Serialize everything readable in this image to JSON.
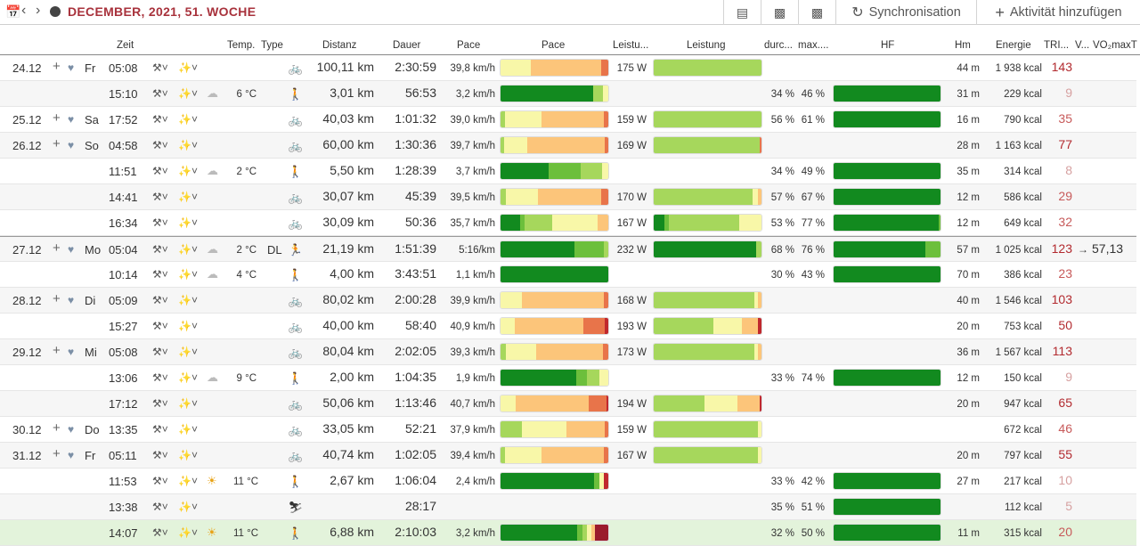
{
  "toolbar": {
    "title": "DECEMBER, 2021, 51. WOCHE",
    "sync_label": "Synchronisation",
    "add_label": "Aktivität hinzufügen"
  },
  "columns": {
    "zeit": "Zeit",
    "temp": "Temp.",
    "type": "Type",
    "distanz": "Distanz",
    "dauer": "Dauer",
    "pace_value": "Pace",
    "pace_bar": "Pace",
    "leistung_value": "Leistu...",
    "leistung_bar": "Leistung",
    "avg": "durc...",
    "max": "max....",
    "hf": "HF",
    "hm": "Hm",
    "energie": "Energie",
    "trimp": "TRI...",
    "v": "V...",
    "vo2": "VO₂maxT"
  },
  "colors": {
    "dg": "#128a1f",
    "mg": "#6cbf3c",
    "lg": "#a6d75c",
    "ly": "#f8f7a8",
    "or": "#fcc57a",
    "dor": "#e8744a",
    "rd": "#c0282e",
    "drd": "#9a1c2c"
  },
  "rows": [
    {
      "date": "24.12",
      "dow": "Fr",
      "time": "05:08",
      "temp": "",
      "type": "",
      "sport": "bike",
      "dist": "100,11 km",
      "dur": "2:30:59",
      "pace": "39,8 km/h",
      "watt": "175 W",
      "avg": "",
      "max": "",
      "hm": "44 m",
      "kcal": "1 938 kcal",
      "trimp": "143",
      "vo2": "",
      "pace_bar": [
        [
          "ly",
          0.04
        ],
        [
          "ly",
          0.24
        ],
        [
          "or",
          0.65
        ],
        [
          "dor",
          0.07
        ]
      ],
      "watt_bar": [
        [
          "lg",
          1.0
        ]
      ],
      "hf_bar": []
    },
    {
      "date": "",
      "dow": "",
      "time": "15:10",
      "temp": "6 °C",
      "type": "",
      "sport": "walk",
      "dist": "3,01 km",
      "dur": "56:53",
      "pace": "3,2 km/h",
      "watt": "",
      "avg": "34 %",
      "max": "46 %",
      "hm": "31 m",
      "kcal": "229 kcal",
      "trimp": "9",
      "vo2": "",
      "pace_bar": [
        [
          "dg",
          0.86
        ],
        [
          "lg",
          0.09
        ],
        [
          "ly",
          0.05
        ]
      ],
      "watt_bar": [],
      "hf_bar": [
        [
          "dg",
          1.0
        ]
      ]
    },
    {
      "date": "25.12",
      "dow": "Sa",
      "time": "17:52",
      "temp": "",
      "type": "",
      "sport": "bike",
      "dist": "40,03 km",
      "dur": "1:01:32",
      "pace": "39,0 km/h",
      "watt": "159 W",
      "avg": "56 %",
      "max": "61 %",
      "hm": "16 m",
      "kcal": "790 kcal",
      "trimp": "35",
      "vo2": "",
      "pace_bar": [
        [
          "lg",
          0.04
        ],
        [
          "ly",
          0.34
        ],
        [
          "or",
          0.58
        ],
        [
          "dor",
          0.04
        ]
      ],
      "watt_bar": [
        [
          "lg",
          1.0
        ]
      ],
      "hf_bar": [
        [
          "dg",
          1.0
        ]
      ]
    },
    {
      "date": "26.12",
      "dow": "So",
      "time": "04:58",
      "temp": "",
      "type": "",
      "sport": "bike",
      "dist": "60,00 km",
      "dur": "1:30:36",
      "pace": "39,7 km/h",
      "watt": "169 W",
      "avg": "",
      "max": "",
      "hm": "28 m",
      "kcal": "1 163 kcal",
      "trimp": "77",
      "vo2": "",
      "pace_bar": [
        [
          "lg",
          0.03
        ],
        [
          "ly",
          0.22
        ],
        [
          "or",
          0.72
        ],
        [
          "dor",
          0.03
        ]
      ],
      "watt_bar": [
        [
          "lg",
          0.98
        ],
        [
          "dor",
          0.02
        ]
      ],
      "hf_bar": []
    },
    {
      "date": "",
      "dow": "",
      "time": "11:51",
      "temp": "2 °C",
      "type": "",
      "sport": "walk",
      "dist": "5,50 km",
      "dur": "1:28:39",
      "pace": "3,7 km/h",
      "watt": "",
      "avg": "34 %",
      "max": "49 %",
      "hm": "35 m",
      "kcal": "314 kcal",
      "trimp": "8",
      "vo2": "",
      "pace_bar": [
        [
          "dg",
          0.45
        ],
        [
          "mg",
          0.29
        ],
        [
          "lg",
          0.2
        ],
        [
          "ly",
          0.06
        ]
      ],
      "watt_bar": [],
      "hf_bar": [
        [
          "dg",
          1.0
        ]
      ]
    },
    {
      "date": "",
      "dow": "",
      "time": "14:41",
      "temp": "",
      "type": "",
      "sport": "bike",
      "dist": "30,07 km",
      "dur": "45:39",
      "pace": "39,5 km/h",
      "watt": "170 W",
      "avg": "57 %",
      "max": "67 %",
      "hm": "12 m",
      "kcal": "586 kcal",
      "trimp": "29",
      "vo2": "",
      "pace_bar": [
        [
          "lg",
          0.05
        ],
        [
          "ly",
          0.3
        ],
        [
          "or",
          0.58
        ],
        [
          "dor",
          0.07
        ]
      ],
      "watt_bar": [
        [
          "lg",
          0.92
        ],
        [
          "ly",
          0.05
        ],
        [
          "or",
          0.03
        ]
      ],
      "hf_bar": [
        [
          "dg",
          1.0
        ]
      ]
    },
    {
      "date": "",
      "dow": "",
      "time": "16:34",
      "temp": "",
      "type": "",
      "sport": "bike",
      "dist": "30,09 km",
      "dur": "50:36",
      "pace": "35,7 km/h",
      "watt": "167 W",
      "avg": "53 %",
      "max": "77 %",
      "hm": "12 m",
      "kcal": "649 kcal",
      "trimp": "32",
      "vo2": "",
      "pace_bar": [
        [
          "dg",
          0.18
        ],
        [
          "mg",
          0.04
        ],
        [
          "lg",
          0.26
        ],
        [
          "ly",
          0.42
        ],
        [
          "or",
          0.1
        ]
      ],
      "watt_bar": [
        [
          "dg",
          0.1
        ],
        [
          "mg",
          0.04
        ],
        [
          "lg",
          0.65
        ],
        [
          "ly",
          0.21
        ]
      ],
      "hf_bar": [
        [
          "dg",
          0.98
        ],
        [
          "mg",
          0.02
        ]
      ]
    },
    {
      "date": "27.12",
      "dow": "Mo",
      "time": "05:04",
      "temp": "2 °C",
      "type": "DL",
      "sport": "run",
      "dist": "21,19 km",
      "dur": "1:51:39",
      "pace": "5:16/km",
      "watt": "232 W",
      "avg": "68 %",
      "max": "76 %",
      "hm": "57 m",
      "kcal": "1 025 kcal",
      "trimp": "123",
      "vo2": "57,13",
      "pace_bar": [
        [
          "dg",
          0.69
        ],
        [
          "mg",
          0.27
        ],
        [
          "lg",
          0.04
        ]
      ],
      "watt_bar": [
        [
          "dg",
          0.95
        ],
        [
          "lg",
          0.05
        ]
      ],
      "hf_bar": [
        [
          "dg",
          0.86
        ],
        [
          "mg",
          0.14
        ]
      ]
    },
    {
      "date": "",
      "dow": "",
      "time": "10:14",
      "temp": "4 °C",
      "type": "",
      "sport": "walk",
      "dist": "4,00 km",
      "dur": "3:43:51",
      "pace": "1,1 km/h",
      "watt": "",
      "avg": "30 %",
      "max": "43 %",
      "hm": "70 m",
      "kcal": "386 kcal",
      "trimp": "23",
      "vo2": "",
      "pace_bar": [
        [
          "dg",
          1.0
        ]
      ],
      "watt_bar": [],
      "hf_bar": [
        [
          "dg",
          1.0
        ]
      ]
    },
    {
      "date": "28.12",
      "dow": "Di",
      "time": "05:09",
      "temp": "",
      "type": "",
      "sport": "bike",
      "dist": "80,02 km",
      "dur": "2:00:28",
      "pace": "39,9 km/h",
      "watt": "168 W",
      "avg": "",
      "max": "",
      "hm": "40 m",
      "kcal": "1 546 kcal",
      "trimp": "103",
      "vo2": "",
      "pace_bar": [
        [
          "ly",
          0.2
        ],
        [
          "or",
          0.76
        ],
        [
          "dor",
          0.04
        ]
      ],
      "watt_bar": [
        [
          "lg",
          0.93
        ],
        [
          "ly",
          0.04
        ],
        [
          "or",
          0.03
        ]
      ],
      "hf_bar": []
    },
    {
      "date": "",
      "dow": "",
      "time": "15:27",
      "temp": "",
      "type": "",
      "sport": "bike",
      "dist": "40,00 km",
      "dur": "58:40",
      "pace": "40,9 km/h",
      "watt": "193 W",
      "avg": "",
      "max": "",
      "hm": "20 m",
      "kcal": "753 kcal",
      "trimp": "50",
      "vo2": "",
      "pace_bar": [
        [
          "ly",
          0.13
        ],
        [
          "or",
          0.64
        ],
        [
          "dor",
          0.2
        ],
        [
          "rd",
          0.03
        ]
      ],
      "watt_bar": [
        [
          "lg",
          0.55
        ],
        [
          "ly",
          0.27
        ],
        [
          "or",
          0.15
        ],
        [
          "rd",
          0.03
        ]
      ],
      "hf_bar": []
    },
    {
      "date": "29.12",
      "dow": "Mi",
      "time": "05:08",
      "temp": "",
      "type": "",
      "sport": "bike",
      "dist": "80,04 km",
      "dur": "2:02:05",
      "pace": "39,3 km/h",
      "watt": "173 W",
      "avg": "",
      "max": "",
      "hm": "36 m",
      "kcal": "1 567 kcal",
      "trimp": "113",
      "vo2": "",
      "pace_bar": [
        [
          "lg",
          0.05
        ],
        [
          "ly",
          0.28
        ],
        [
          "or",
          0.62
        ],
        [
          "dor",
          0.05
        ]
      ],
      "watt_bar": [
        [
          "lg",
          0.93
        ],
        [
          "ly",
          0.04
        ],
        [
          "or",
          0.03
        ]
      ],
      "hf_bar": []
    },
    {
      "date": "",
      "dow": "",
      "time": "13:06",
      "temp": "9 °C",
      "type": "",
      "sport": "walk",
      "dist": "2,00 km",
      "dur": "1:04:35",
      "pace": "1,9 km/h",
      "watt": "",
      "avg": "33 %",
      "max": "74 %",
      "hm": "12 m",
      "kcal": "150 kcal",
      "trimp": "9",
      "vo2": "",
      "pace_bar": [
        [
          "dg",
          0.7
        ],
        [
          "mg",
          0.1
        ],
        [
          "lg",
          0.12
        ],
        [
          "ly",
          0.08
        ]
      ],
      "watt_bar": [],
      "hf_bar": [
        [
          "dg",
          1.0
        ]
      ]
    },
    {
      "date": "",
      "dow": "",
      "time": "17:12",
      "temp": "",
      "type": "",
      "sport": "bike",
      "dist": "50,06 km",
      "dur": "1:13:46",
      "pace": "40,7 km/h",
      "watt": "194 W",
      "avg": "",
      "max": "",
      "hm": "20 m",
      "kcal": "947 kcal",
      "trimp": "65",
      "vo2": "",
      "pace_bar": [
        [
          "ly",
          0.14
        ],
        [
          "or",
          0.68
        ],
        [
          "dor",
          0.16
        ],
        [
          "rd",
          0.02
        ]
      ],
      "watt_bar": [
        [
          "lg",
          0.47
        ],
        [
          "ly",
          0.31
        ],
        [
          "or",
          0.2
        ],
        [
          "rd",
          0.02
        ]
      ],
      "hf_bar": []
    },
    {
      "date": "30.12",
      "dow": "Do",
      "time": "13:35",
      "temp": "",
      "type": "",
      "sport": "bike",
      "dist": "33,05 km",
      "dur": "52:21",
      "pace": "37,9 km/h",
      "watt": "159 W",
      "avg": "",
      "max": "",
      "hm": "",
      "kcal": "672 kcal",
      "trimp": "46",
      "vo2": "",
      "pace_bar": [
        [
          "lg",
          0.2
        ],
        [
          "ly",
          0.41
        ],
        [
          "or",
          0.36
        ],
        [
          "dor",
          0.03
        ]
      ],
      "watt_bar": [
        [
          "lg",
          0.97
        ],
        [
          "ly",
          0.03
        ]
      ],
      "hf_bar": []
    },
    {
      "date": "31.12",
      "dow": "Fr",
      "time": "05:11",
      "temp": "",
      "type": "",
      "sport": "bike",
      "dist": "40,74 km",
      "dur": "1:02:05",
      "pace": "39,4 km/h",
      "watt": "167 W",
      "avg": "",
      "max": "",
      "hm": "20 m",
      "kcal": "797 kcal",
      "trimp": "55",
      "vo2": "",
      "pace_bar": [
        [
          "lg",
          0.04
        ],
        [
          "ly",
          0.34
        ],
        [
          "or",
          0.58
        ],
        [
          "dor",
          0.04
        ]
      ],
      "watt_bar": [
        [
          "lg",
          0.97
        ],
        [
          "ly",
          0.03
        ]
      ],
      "hf_bar": []
    },
    {
      "date": "",
      "dow": "",
      "time": "11:53",
      "temp": "11 °C",
      "type": "",
      "sport": "walk",
      "dist": "2,67 km",
      "dur": "1:06:04",
      "pace": "2,4 km/h",
      "watt": "",
      "avg": "33 %",
      "max": "42 %",
      "hm": "27 m",
      "kcal": "217 kcal",
      "trimp": "10",
      "vo2": "",
      "pace_bar": [
        [
          "dg",
          0.87
        ],
        [
          "mg",
          0.05
        ],
        [
          "ly",
          0.04
        ],
        [
          "rd",
          0.04
        ]
      ],
      "watt_bar": [],
      "hf_bar": [
        [
          "dg",
          1.0
        ]
      ]
    },
    {
      "date": "",
      "dow": "",
      "time": "13:38",
      "temp": "",
      "type": "",
      "sport": "other",
      "dist": "",
      "dur": "28:17",
      "pace": "",
      "watt": "",
      "avg": "35 %",
      "max": "51 %",
      "hm": "",
      "kcal": "112 kcal",
      "trimp": "5",
      "vo2": "",
      "pace_bar": [],
      "watt_bar": [],
      "hf_bar": [
        [
          "dg",
          1.0
        ]
      ]
    },
    {
      "date": "",
      "dow": "",
      "time": "14:07",
      "temp": "11 °C",
      "type": "",
      "sport": "walk",
      "dist": "6,88 km",
      "dur": "2:10:03",
      "pace": "3,2 km/h",
      "watt": "",
      "avg": "32 %",
      "max": "50 %",
      "hm": "11 m",
      "kcal": "315 kcal",
      "trimp": "20",
      "vo2": "",
      "pace_bar": [
        [
          "dg",
          0.71
        ],
        [
          "mg",
          0.05
        ],
        [
          "lg",
          0.04
        ],
        [
          "ly",
          0.04
        ],
        [
          "or",
          0.04
        ],
        [
          "drd",
          0.12
        ]
      ],
      "watt_bar": [],
      "hf_bar": [
        [
          "dg",
          1.0
        ]
      ]
    }
  ]
}
